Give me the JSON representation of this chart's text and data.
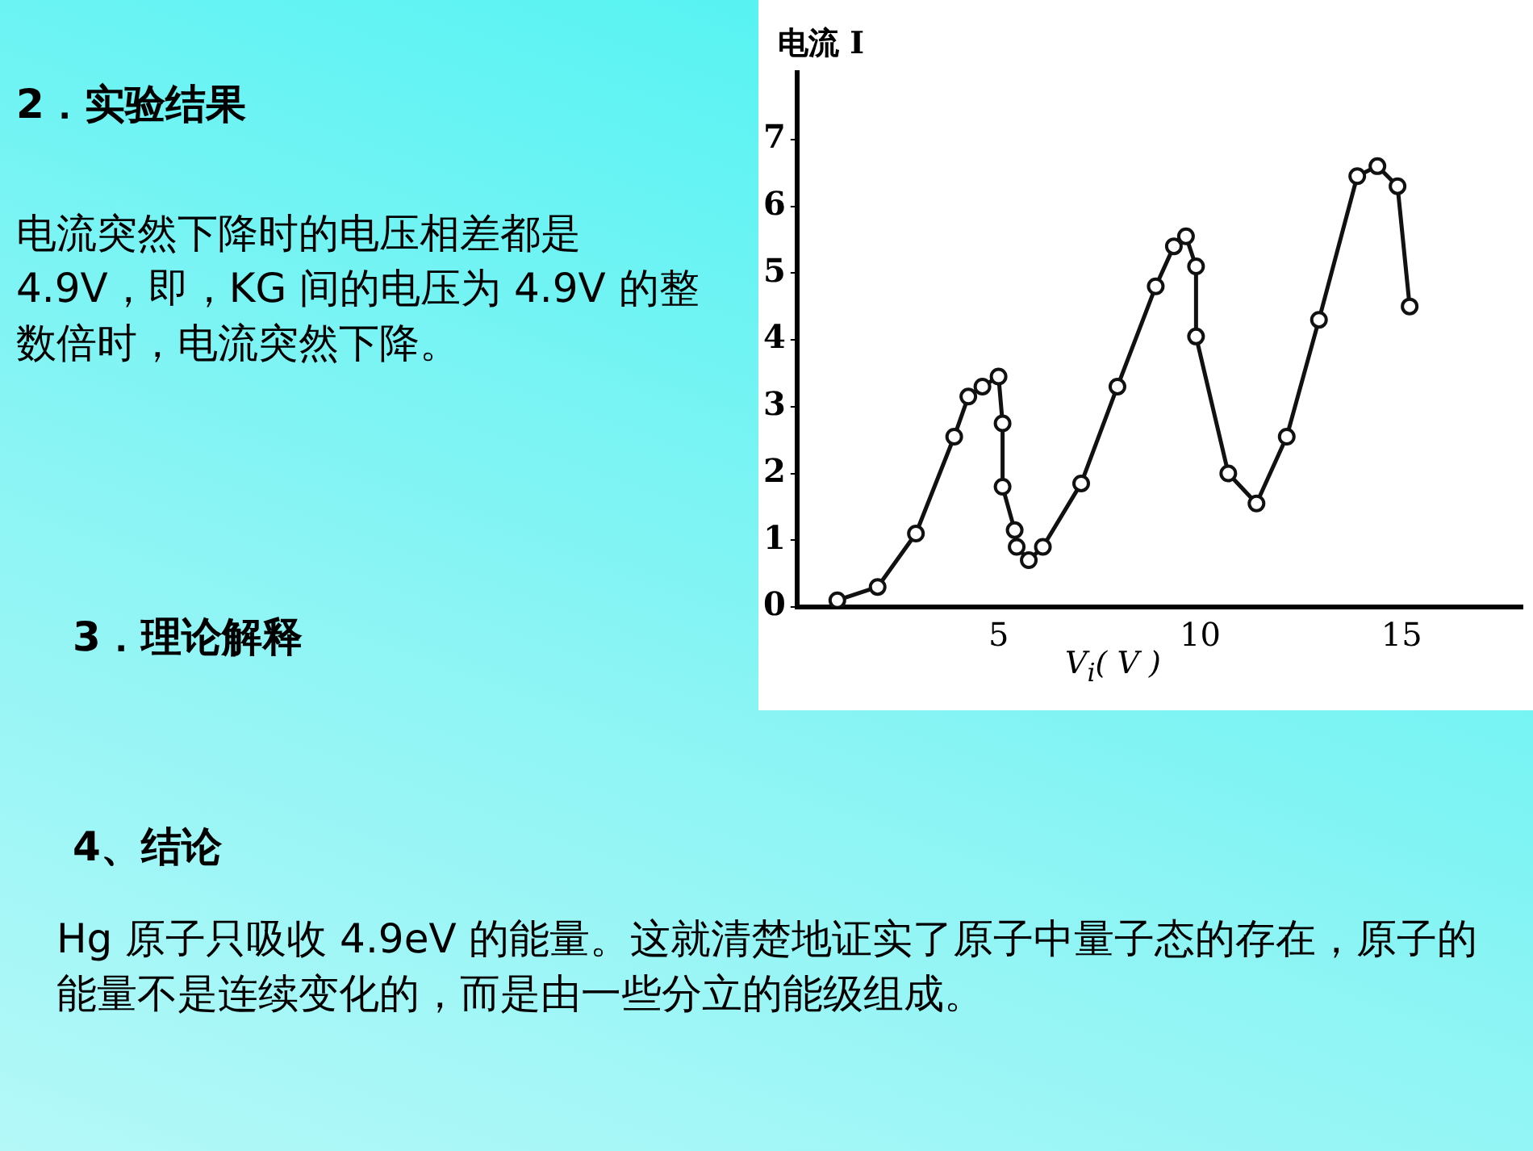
{
  "chart_data": {
    "type": "line",
    "xlabel": "V$_{i}$( V )",
    "ylabel": "电流 I",
    "x": [
      1.0,
      2.0,
      2.95,
      3.9,
      4.25,
      4.6,
      5.0,
      5.1,
      5.1,
      5.4,
      5.45,
      5.75,
      6.1,
      7.05,
      7.95,
      8.9,
      9.35,
      9.65,
      9.9,
      9.9,
      10.7,
      11.4,
      12.15,
      12.95,
      13.9,
      14.4,
      14.9,
      15.2
    ],
    "series": [
      {
        "color": "#111111",
        "values": [
          0.1,
          0.3,
          1.1,
          2.55,
          3.15,
          3.3,
          3.45,
          2.75,
          1.8,
          1.15,
          0.9,
          0.7,
          0.9,
          1.85,
          3.3,
          4.8,
          5.4,
          5.55,
          5.1,
          4.05,
          2.0,
          1.55,
          2.55,
          4.3,
          6.45,
          6.6,
          6.3,
          4.5
        ]
      }
    ],
    "xlim": [
      0,
      18
    ],
    "xticks": [
      5,
      10,
      15
    ],
    "ylim": [
      0,
      8
    ],
    "yticks": [
      0,
      1,
      2,
      3,
      4,
      5,
      6,
      7
    ],
    "grid": false,
    "legend": false,
    "marker": "circle",
    "line_style": "solid",
    "annotations": [
      "2．实验结果",
      "电流突然下降时的电压相差都是 4.9V，即，KG 间的电压为 4.9V 的整数倍时，电流突然下降。",
      "3．理论解释",
      "4、结论",
      "Hg 原子只吸收 4.9eV 的能量。这就清楚地证实了原子中量子态的存在，原子的能量不是连续变化的，而是由一些分立的能级组成。"
    ]
  }
}
